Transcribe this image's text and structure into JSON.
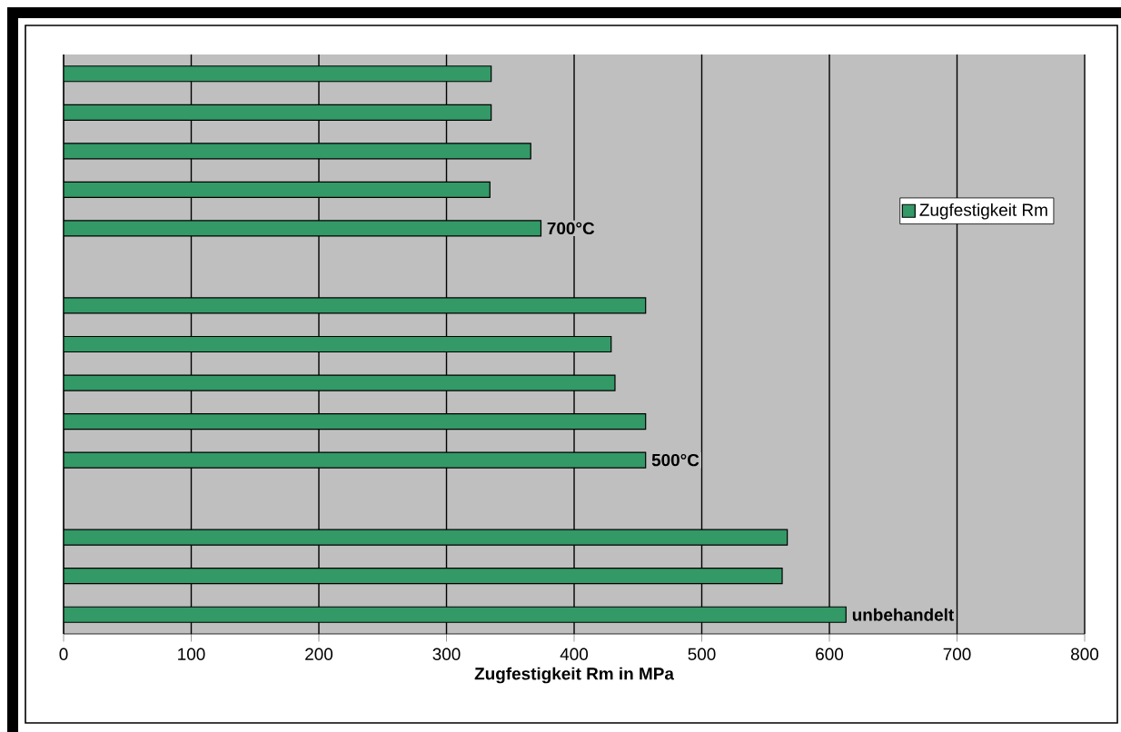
{
  "chart_data": {
    "type": "bar",
    "orientation": "horizontal",
    "xlabel": "Zugfestigkeit Rm in MPa",
    "categories": [
      null,
      null,
      null,
      null,
      "700°C",
      null,
      null,
      null,
      null,
      null,
      "500°C",
      null,
      null,
      null,
      "unbehandelt"
    ],
    "series": [
      {
        "name": "Zugfestigkeit Rm",
        "color": "#339966",
        "values": [
          335,
          335,
          366,
          334,
          374,
          null,
          456,
          429,
          432,
          456,
          456,
          null,
          567,
          563,
          613
        ]
      }
    ],
    "xlim": [
      0,
      800
    ],
    "xticks": [
      0,
      100,
      200,
      300,
      400,
      500,
      600,
      700,
      800
    ],
    "grid": "x",
    "legend": "right",
    "tick_labels": "x"
  }
}
